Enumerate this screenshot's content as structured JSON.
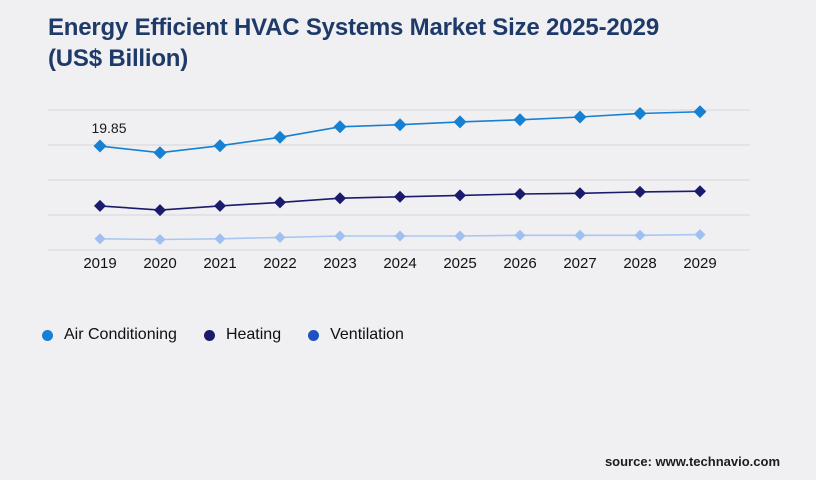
{
  "title": {
    "line1": "Energy Efficient HVAC Systems Market Size 2025-2029",
    "line2": "(US$ Billion)"
  },
  "source": "source: www.technavio.com",
  "colors": {
    "background": "#f0f0f2",
    "title_text": "#1e3a69",
    "grid": "#d6d6d8",
    "axis_text": "#111111",
    "data_label_text": "#1a1a1a",
    "air_conditioning": "#1680d2",
    "heating": "#1b1b6e",
    "ventilation_line": "#a9c7f2",
    "ventilation_legend": "#1d52c4"
  },
  "chart_data": {
    "type": "line",
    "title": "Energy Efficient HVAC Systems Market Size 2025-2029 (US$ Billion)",
    "categories": [
      "2019",
      "2020",
      "2021",
      "2022",
      "2023",
      "2024",
      "2025",
      "2026",
      "2027",
      "2028",
      "2029"
    ],
    "series": [
      {
        "name": "Air Conditioning",
        "color": "#1680d2",
        "legend_color": "#1680d2",
        "values": [
          19.85,
          18.9,
          19.9,
          21.1,
          22.6,
          22.9,
          23.3,
          23.6,
          24.0,
          24.5,
          24.75
        ]
      },
      {
        "name": "Heating",
        "color": "#1b1b6e",
        "legend_color": "#1b1b6e",
        "values": [
          11.3,
          10.7,
          11.3,
          11.8,
          12.4,
          12.6,
          12.8,
          13.0,
          13.1,
          13.3,
          13.4
        ]
      },
      {
        "name": "Ventilation",
        "color": "#a9c7f2",
        "marker_color": "#9fc0f0",
        "legend_color": "#1d52c4",
        "values": [
          6.6,
          6.5,
          6.6,
          6.8,
          7.0,
          7.0,
          7.0,
          7.1,
          7.1,
          7.1,
          7.2
        ]
      }
    ],
    "data_labels": [
      {
        "series": "Air Conditioning",
        "category": "2019",
        "text": "19.85"
      }
    ],
    "ylim": [
      5,
      25
    ],
    "gridline_values": [
      25,
      20,
      15,
      10,
      5
    ],
    "y_axis_labels_visible": false,
    "grid": true,
    "marker": "diamond",
    "legend_position": "bottom-left"
  }
}
